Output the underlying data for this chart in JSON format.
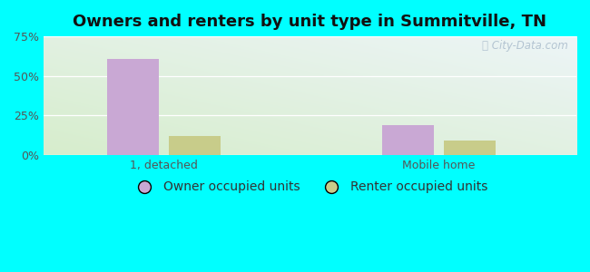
{
  "title": "Owners and renters by unit type in Summitville, TN",
  "categories": [
    "1, detached",
    "Mobile home"
  ],
  "owner_values": [
    61.0,
    19.0
  ],
  "renter_values": [
    12.0,
    9.0
  ],
  "owner_color": "#c9a8d4",
  "renter_color": "#c8cc8a",
  "ylim": [
    0,
    75
  ],
  "yticks": [
    0,
    25,
    50,
    75
  ],
  "yticklabels": [
    "0%",
    "25%",
    "50%",
    "75%"
  ],
  "bar_width": 0.3,
  "group_positions": [
    1.0,
    2.6
  ],
  "watermark": "City-Data.com",
  "legend_owner": "Owner occupied units",
  "legend_renter": "Renter occupied units",
  "title_fontsize": 13,
  "tick_fontsize": 9,
  "legend_fontsize": 10,
  "outer_bg": "#00ffff",
  "xlim": [
    0.3,
    3.4
  ]
}
